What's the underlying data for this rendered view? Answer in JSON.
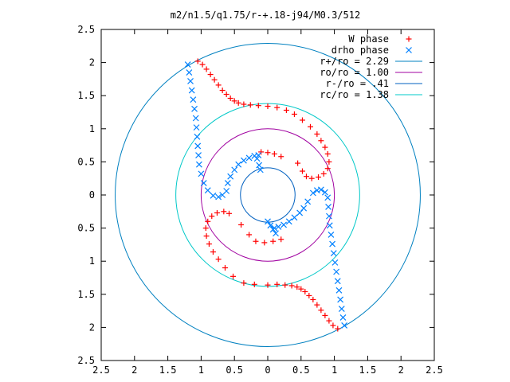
{
  "chart_data": {
    "type": "scatter",
    "title": "m2/n1.5/q1.75/r-+.18-j94/M0.3/512",
    "xlim": [
      -2.5,
      2.5
    ],
    "ylim": [
      -2.5,
      2.5
    ],
    "x_tick_labels": [
      "2.5",
      "2",
      "1.5",
      "1",
      "0.5",
      "0",
      "0.5",
      "1",
      "1.5",
      "2",
      "2.5"
    ],
    "y_tick_labels": [
      "2.5",
      "2",
      "1.5",
      "1",
      "0.5",
      "0",
      "0.5",
      "1",
      "1.5",
      "2",
      "2.5"
    ],
    "grid": false,
    "legend_position": "top-right",
    "series": [
      {
        "name": "W phase",
        "marker": "plus",
        "color": "#ff0000",
        "points": [
          [
            -1.05,
            2.02
          ],
          [
            -0.98,
            1.97
          ],
          [
            -0.92,
            1.9
          ],
          [
            -0.86,
            1.82
          ],
          [
            -0.8,
            1.74
          ],
          [
            -0.74,
            1.66
          ],
          [
            -0.68,
            1.58
          ],
          [
            -0.62,
            1.52
          ],
          [
            -0.56,
            1.46
          ],
          [
            -0.5,
            1.42
          ],
          [
            -0.44,
            1.39
          ],
          [
            -0.36,
            1.37
          ],
          [
            -0.26,
            1.36
          ],
          [
            -0.14,
            1.35
          ],
          [
            0.0,
            1.34
          ],
          [
            0.14,
            1.32
          ],
          [
            0.28,
            1.28
          ],
          [
            0.4,
            1.22
          ],
          [
            0.52,
            1.13
          ],
          [
            0.64,
            1.03
          ],
          [
            0.74,
            0.92
          ],
          [
            0.8,
            0.82
          ],
          [
            0.86,
            0.72
          ],
          [
            0.9,
            0.62
          ],
          [
            0.92,
            0.5
          ],
          [
            0.9,
            0.4
          ],
          [
            0.84,
            0.32
          ],
          [
            0.76,
            0.27
          ],
          [
            0.66,
            0.25
          ],
          [
            0.58,
            0.28
          ],
          [
            0.52,
            0.36
          ],
          [
            0.45,
            0.48
          ],
          [
            -0.1,
            0.65
          ],
          [
            0.0,
            0.64
          ],
          [
            0.1,
            0.62
          ],
          [
            0.2,
            0.58
          ],
          [
            1.05,
            -2.02
          ],
          [
            0.98,
            -1.97
          ],
          [
            0.92,
            -1.9
          ],
          [
            0.86,
            -1.82
          ],
          [
            0.8,
            -1.74
          ],
          [
            0.74,
            -1.66
          ],
          [
            0.68,
            -1.58
          ],
          [
            0.62,
            -1.52
          ],
          [
            0.56,
            -1.46
          ],
          [
            0.5,
            -1.42
          ],
          [
            0.44,
            -1.39
          ],
          [
            0.36,
            -1.37
          ],
          [
            0.26,
            -1.36
          ],
          [
            0.14,
            -1.35
          ],
          [
            0.0,
            -1.36
          ],
          [
            -0.2,
            -1.35
          ],
          [
            -0.36,
            -1.33
          ],
          [
            -0.52,
            -1.23
          ],
          [
            -0.64,
            -1.1
          ],
          [
            -0.74,
            -0.97
          ],
          [
            -0.82,
            -0.86
          ],
          [
            -0.88,
            -0.74
          ],
          [
            -0.92,
            -0.62
          ],
          [
            -0.93,
            -0.5
          ],
          [
            -0.9,
            -0.4
          ],
          [
            -0.84,
            -0.32
          ],
          [
            -0.76,
            -0.27
          ],
          [
            -0.66,
            -0.25
          ],
          [
            -0.58,
            -0.28
          ],
          [
            -0.4,
            -0.45
          ],
          [
            -0.28,
            -0.6
          ],
          [
            -0.18,
            -0.7
          ],
          [
            -0.05,
            -0.72
          ],
          [
            0.08,
            -0.7
          ],
          [
            0.2,
            -0.67
          ]
        ]
      },
      {
        "name": "drho phase",
        "marker": "cross",
        "color": "#0080ff",
        "points": [
          [
            -1.2,
            1.97
          ],
          [
            -1.18,
            1.85
          ],
          [
            -1.16,
            1.72
          ],
          [
            -1.14,
            1.58
          ],
          [
            -1.12,
            1.44
          ],
          [
            -1.1,
            1.3
          ],
          [
            -1.08,
            1.16
          ],
          [
            -1.07,
            1.02
          ],
          [
            -1.06,
            0.88
          ],
          [
            -1.05,
            0.74
          ],
          [
            -1.04,
            0.6
          ],
          [
            -1.03,
            0.46
          ],
          [
            -1.0,
            0.32
          ],
          [
            -0.96,
            0.18
          ],
          [
            -0.9,
            0.07
          ],
          [
            -0.82,
            -0.01
          ],
          [
            -0.74,
            -0.03
          ],
          [
            -0.68,
            0.0
          ],
          [
            -0.62,
            0.06
          ],
          [
            -0.6,
            0.18
          ],
          [
            -0.56,
            0.28
          ],
          [
            -0.5,
            0.38
          ],
          [
            -0.44,
            0.46
          ],
          [
            -0.36,
            0.52
          ],
          [
            -0.28,
            0.56
          ],
          [
            -0.2,
            0.59
          ],
          [
            -0.14,
            0.6
          ],
          [
            -0.16,
            0.55
          ],
          [
            -0.13,
            0.45
          ],
          [
            -0.11,
            0.38
          ],
          [
            1.15,
            -1.97
          ],
          [
            1.13,
            -1.85
          ],
          [
            1.11,
            -1.72
          ],
          [
            1.09,
            -1.58
          ],
          [
            1.07,
            -1.44
          ],
          [
            1.05,
            -1.3
          ],
          [
            1.03,
            -1.16
          ],
          [
            1.01,
            -1.02
          ],
          [
            0.99,
            -0.88
          ],
          [
            0.97,
            -0.74
          ],
          [
            0.95,
            -0.6
          ],
          [
            0.93,
            -0.46
          ],
          [
            0.92,
            -0.32
          ],
          [
            0.91,
            -0.18
          ],
          [
            0.9,
            -0.04
          ],
          [
            0.86,
            0.04
          ],
          [
            0.8,
            0.08
          ],
          [
            0.74,
            0.07
          ],
          [
            0.68,
            0.03
          ],
          [
            0.6,
            -0.1
          ],
          [
            0.54,
            -0.2
          ],
          [
            0.48,
            -0.27
          ],
          [
            0.4,
            -0.34
          ],
          [
            0.32,
            -0.4
          ],
          [
            0.24,
            -0.45
          ],
          [
            0.16,
            -0.48
          ],
          [
            0.1,
            -0.5
          ],
          [
            0.12,
            -0.58
          ],
          [
            0.08,
            -0.52
          ],
          [
            0.04,
            -0.46
          ],
          [
            0.0,
            -0.4
          ]
        ]
      },
      {
        "name": "r+/ro = 2.29",
        "type": "circle",
        "radius": 2.29,
        "color": "#0080c0"
      },
      {
        "name": "ro/ro = 1.00",
        "type": "circle",
        "radius": 1.0,
        "color": "#a000a0"
      },
      {
        "name": "r-/ro = .41",
        "type": "circle",
        "radius": 0.41,
        "color": "#0060c0"
      },
      {
        "name": "rc/ro = 1.38",
        "type": "circle",
        "radius": 1.38,
        "color": "#00c8c8"
      }
    ]
  }
}
